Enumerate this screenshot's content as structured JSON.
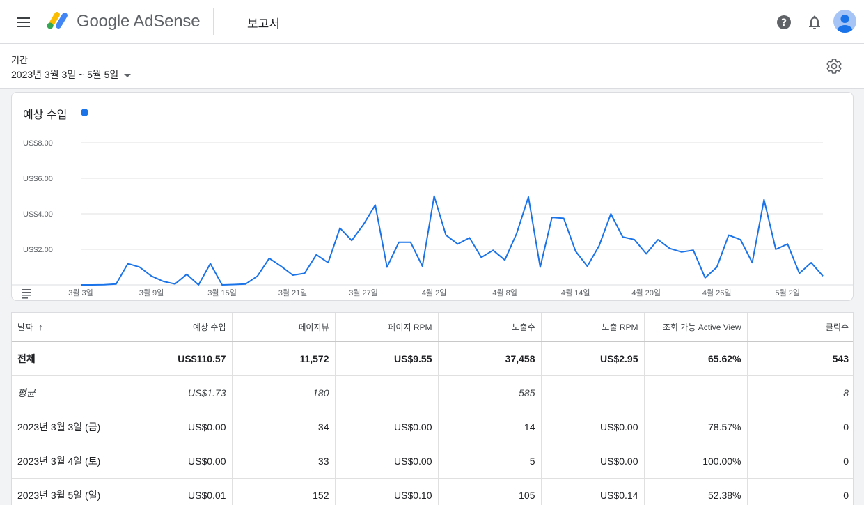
{
  "header": {
    "brand": "Google AdSense",
    "page_title": "보고서"
  },
  "period": {
    "label": "기간",
    "value": "2023년 3월 3일 ~ 5월 5일"
  },
  "colors": {
    "accent": "#1a73e8"
  },
  "chart_data": {
    "type": "line",
    "title": "예상 수입",
    "ylim": [
      0,
      8
    ],
    "y_ticks": [
      "US$8.00",
      "US$6.00",
      "US$4.00",
      "US$2.00"
    ],
    "y_tick_values": [
      8,
      6,
      4,
      2
    ],
    "x_tick_labels": [
      "3월 3일",
      "3월 9일",
      "3월 15일",
      "3월 21일",
      "3월 27일",
      "4월 2일",
      "4월 8일",
      "4월 14일",
      "4월 20일",
      "4월 26일",
      "5월 2일"
    ],
    "x_tick_index": [
      0,
      6,
      12,
      18,
      24,
      30,
      36,
      42,
      48,
      54,
      60
    ],
    "grid": true,
    "series": [
      {
        "values": [
          0.0,
          0.0,
          0.01,
          0.05,
          1.2,
          1.0,
          0.5,
          0.2,
          0.05,
          0.6,
          0.0,
          1.2,
          0.0,
          0.02,
          0.05,
          0.5,
          1.5,
          1.05,
          0.55,
          0.65,
          1.7,
          1.25,
          3.2,
          2.5,
          3.4,
          4.5,
          1.0,
          2.4,
          2.4,
          1.05,
          5.0,
          2.8,
          2.3,
          2.65,
          1.55,
          1.95,
          1.4,
          2.9,
          4.95,
          1.0,
          3.8,
          3.75,
          1.9,
          1.05,
          2.2,
          4.0,
          2.7,
          2.55,
          1.75,
          2.55,
          2.05,
          1.85,
          1.95,
          0.4,
          1.0,
          2.8,
          2.55,
          1.25,
          4.8,
          2.0,
          2.3,
          0.65,
          1.25,
          0.5
        ]
      }
    ]
  },
  "table": {
    "columns": [
      "날짜",
      "예상 수입",
      "페이지뷰",
      "페이지 RPM",
      "노출수",
      "노출 RPM",
      "조회 가능 Active View",
      "클릭수"
    ],
    "sort_indicator": "↑",
    "total": [
      "전체",
      "US$110.57",
      "11,572",
      "US$9.55",
      "37,458",
      "US$2.95",
      "65.62%",
      "543"
    ],
    "average": [
      "평균",
      "US$1.73",
      "180",
      "—",
      "585",
      "—",
      "—",
      "8"
    ],
    "rows": [
      [
        "2023년 3월 3일 (금)",
        "US$0.00",
        "34",
        "US$0.00",
        "14",
        "US$0.00",
        "78.57%",
        "0"
      ],
      [
        "2023년 3월 4일 (토)",
        "US$0.00",
        "33",
        "US$0.00",
        "5",
        "US$0.00",
        "100.00%",
        "0"
      ],
      [
        "2023년 3월 5일 (일)",
        "US$0.01",
        "152",
        "US$0.10",
        "105",
        "US$0.14",
        "52.38%",
        "0"
      ]
    ]
  }
}
